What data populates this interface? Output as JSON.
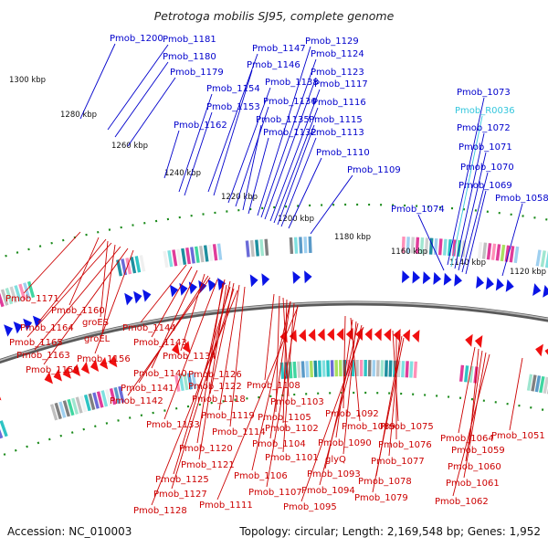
{
  "title": "Petrotoga mobilis SJ95, complete genome",
  "accession": "Accession: NC_010003",
  "summary": "Topology: circular; Length: 2,169,548 bp; Genes: 1,952",
  "colors": {
    "forward_label": "#0000cc",
    "reverse_label": "#cc0000",
    "rna_label": "#33c6dd",
    "forward_arrow": "#0a14e6",
    "reverse_arrow": "#f01010",
    "backbone": "#888888",
    "tick": "#1a8a1a"
  },
  "scale_labels": [
    "1300 kbp",
    "1280 kbp",
    "1260 kbp",
    "1240 kbp",
    "1220 kbp",
    "1200 kbp",
    "1180 kbp",
    "1160 kbp",
    "1140 kbp",
    "1120 kbp"
  ],
  "forward_genes": [
    "Pmob_1200",
    "Pmob_1181",
    "Pmob_1180",
    "Pmob_1179",
    "Pmob_1162",
    "Pmob_1154",
    "Pmob_1153",
    "Pmob_1147",
    "Pmob_1146",
    "Pmob_1138",
    "Pmob_1136",
    "Pmob_1135",
    "Pmob_1132",
    "Pmob_1129",
    "Pmob_1124",
    "Pmob_1123",
    "Pmob_1117",
    "Pmob_1116",
    "Pmob_1115",
    "Pmob_1113",
    "Pmob_1110",
    "Pmob_1109",
    "Pmob_1074",
    "Pmob_1073",
    "Pmob_R0036",
    "Pmob_1072",
    "Pmob_1071",
    "Pmob_1070",
    "Pmob_1069",
    "Pmob_1058"
  ],
  "reverse_genes": [
    "Pmob_1171",
    "Pmob_1160",
    "Pmob_1164",
    "groES",
    "Pmob_1165",
    "groEL",
    "Pmob_1163",
    "Pmob_1159",
    "Pmob_1156",
    "Pmob_1144",
    "Pmob_1143",
    "Pmob_1134",
    "Pmob_1140",
    "Pmob_1141",
    "Pmob_1142",
    "Pmob_1126",
    "Pmob_1122",
    "Pmob_1118",
    "Pmob_1119",
    "Pmob_1133",
    "Pmob_1114",
    "Pmob_1120",
    "Pmob_1121",
    "Pmob_1125",
    "Pmob_1127",
    "Pmob_1128",
    "Pmob_1108",
    "Pmob_1105",
    "Pmob_1103",
    "Pmob_1102",
    "Pmob_1104",
    "Pmob_1101",
    "Pmob_1106",
    "Pmob_1107",
    "Pmob_1111",
    "Pmob_1092",
    "Pmob_1089",
    "Pmob_1090",
    "glyQ",
    "Pmob_1093",
    "Pmob_1094",
    "Pmob_1095",
    "Pmob_1075",
    "Pmob_1076",
    "Pmob_1077",
    "Pmob_1078",
    "Pmob_1079",
    "Pmob_1064",
    "Pmob_1059",
    "Pmob_1060",
    "Pmob_1061",
    "Pmob_1062",
    "Pmob_1051"
  ]
}
